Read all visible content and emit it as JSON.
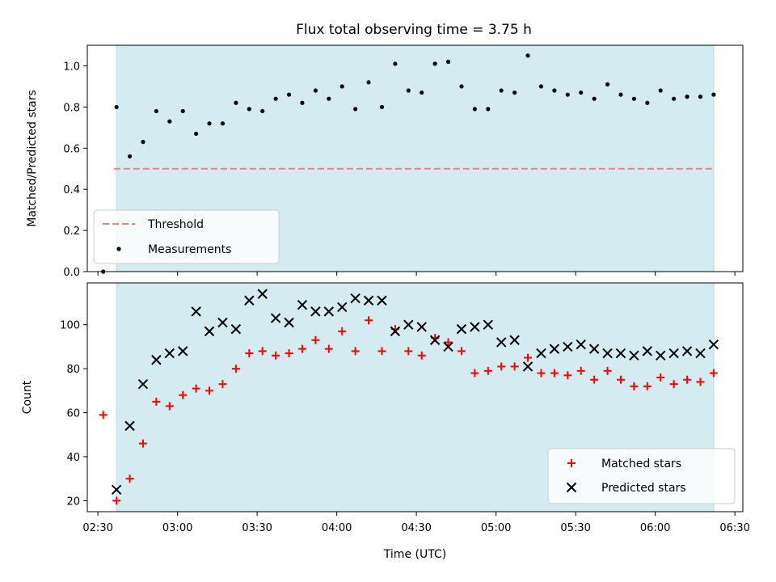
{
  "chart_data": [
    {
      "type": "scatter",
      "title": "Flux total observing time = 3.75 h",
      "xlabel": "",
      "ylabel": "Matched/Predicted stars",
      "ylim": [
        0.0,
        1.1
      ],
      "yticks": [
        0.0,
        0.2,
        0.4,
        0.6,
        0.8,
        1.0
      ],
      "ytick_labels": [
        "0.0",
        "0.2",
        "0.4",
        "0.6",
        "0.8",
        "1.0"
      ],
      "shaded_range": [
        "02:37",
        "06:22"
      ],
      "shade_color": "#d4ebf1",
      "threshold": {
        "name": "Threshold",
        "value": 0.5,
        "x_range": [
          "02:36",
          "06:22"
        ],
        "color": "#f08080"
      },
      "series": [
        {
          "name": "Measurements",
          "color": "#000000",
          "marker": "dot",
          "x": [
            "02:32",
            "02:37",
            "02:42",
            "02:47",
            "02:52",
            "02:57",
            "03:02",
            "03:07",
            "03:12",
            "03:17",
            "03:22",
            "03:27",
            "03:32",
            "03:37",
            "03:42",
            "03:47",
            "03:52",
            "03:57",
            "04:02",
            "04:07",
            "04:12",
            "04:17",
            "04:22",
            "04:27",
            "04:32",
            "04:37",
            "04:42",
            "04:47",
            "04:52",
            "04:57",
            "05:02",
            "05:07",
            "05:12",
            "05:17",
            "05:22",
            "05:27",
            "05:32",
            "05:37",
            "05:42",
            "05:47",
            "05:52",
            "05:57",
            "06:02",
            "06:07",
            "06:12",
            "06:17",
            "06:22"
          ],
          "y": [
            0.0,
            0.8,
            0.56,
            0.63,
            0.78,
            0.73,
            0.78,
            0.67,
            0.72,
            0.72,
            0.82,
            0.79,
            0.78,
            0.84,
            0.86,
            0.82,
            0.88,
            0.84,
            0.9,
            0.79,
            0.92,
            0.8,
            1.01,
            0.88,
            0.87,
            1.01,
            1.02,
            0.9,
            0.79,
            0.79,
            0.88,
            0.87,
            1.05,
            0.9,
            0.88,
            0.86,
            0.87,
            0.84,
            0.91,
            0.86,
            0.84,
            0.82,
            0.88,
            0.84,
            0.85,
            0.85,
            0.86
          ]
        }
      ],
      "legend": {
        "position": "lower-left",
        "entries": [
          "Threshold",
          "Measurements"
        ]
      }
    },
    {
      "type": "scatter",
      "title": "",
      "xlabel": "Time (UTC)",
      "ylabel": "Count",
      "ylim": [
        15,
        119
      ],
      "yticks": [
        20,
        40,
        60,
        80,
        100
      ],
      "ytick_labels": [
        "20",
        "40",
        "60",
        "80",
        "100"
      ],
      "xlim": [
        "02:26",
        "06:33"
      ],
      "xticks": [
        "02:30",
        "03:00",
        "03:30",
        "04:00",
        "04:30",
        "05:00",
        "05:30",
        "06:00",
        "06:30"
      ],
      "xtick_labels": [
        "02:30",
        "03:00",
        "03:30",
        "04:00",
        "04:30",
        "05:00",
        "05:30",
        "06:00",
        "06:30"
      ],
      "shaded_range": [
        "02:37",
        "06:22"
      ],
      "shade_color": "#d4ebf1",
      "series": [
        {
          "name": "Matched stars",
          "color": "#ff0000",
          "marker": "plus",
          "x": [
            "02:32",
            "02:37",
            "02:42",
            "02:47",
            "02:52",
            "02:57",
            "03:02",
            "03:07",
            "03:12",
            "03:17",
            "03:22",
            "03:27",
            "03:32",
            "03:37",
            "03:42",
            "03:47",
            "03:52",
            "03:57",
            "04:02",
            "04:07",
            "04:12",
            "04:17",
            "04:22",
            "04:27",
            "04:32",
            "04:37",
            "04:42",
            "04:47",
            "04:52",
            "04:57",
            "05:02",
            "05:07",
            "05:12",
            "05:17",
            "05:22",
            "05:27",
            "05:32",
            "05:37",
            "05:42",
            "05:47",
            "05:52",
            "05:57",
            "06:02",
            "06:07",
            "06:12",
            "06:17",
            "06:22"
          ],
          "y": [
            59,
            20,
            30,
            46,
            65,
            63,
            68,
            71,
            70,
            73,
            80,
            87,
            88,
            86,
            87,
            89,
            93,
            89,
            97,
            88,
            102,
            88,
            98,
            88,
            86,
            94,
            92,
            88,
            78,
            79,
            81,
            81,
            85,
            78,
            78,
            77,
            79,
            75,
            79,
            75,
            72,
            72,
            76,
            73,
            75,
            74,
            78
          ]
        },
        {
          "name": "Predicted stars",
          "color": "#000000",
          "marker": "x",
          "x": [
            "02:37",
            "02:42",
            "02:47",
            "02:52",
            "02:57",
            "03:02",
            "03:07",
            "03:12",
            "03:17",
            "03:22",
            "03:27",
            "03:32",
            "03:37",
            "03:42",
            "03:47",
            "03:52",
            "03:57",
            "04:02",
            "04:07",
            "04:12",
            "04:17",
            "04:22",
            "04:27",
            "04:32",
            "04:37",
            "04:42",
            "04:47",
            "04:52",
            "04:57",
            "05:02",
            "05:07",
            "05:12",
            "05:17",
            "05:22",
            "05:27",
            "05:32",
            "05:37",
            "05:42",
            "05:47",
            "05:52",
            "05:57",
            "06:02",
            "06:07",
            "06:12",
            "06:17",
            "06:22"
          ],
          "y": [
            25,
            54,
            73,
            84,
            87,
            88,
            106,
            97,
            101,
            98,
            111,
            114,
            103,
            101,
            109,
            106,
            106,
            108,
            112,
            111,
            111,
            97,
            100,
            99,
            93,
            90,
            98,
            99,
            100,
            92,
            93,
            81,
            87,
            89,
            90,
            91,
            89,
            87,
            87,
            86,
            88,
            86,
            87,
            88,
            87,
            91
          ]
        }
      ],
      "legend": {
        "position": "lower-right",
        "entries": [
          "Matched stars",
          "Predicted stars"
        ]
      }
    }
  ]
}
